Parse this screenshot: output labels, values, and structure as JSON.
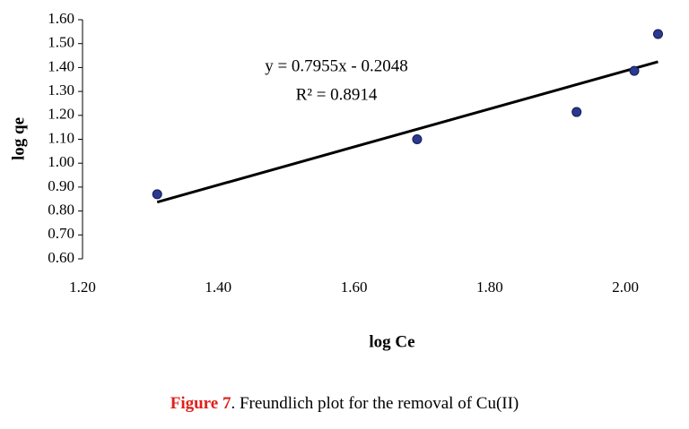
{
  "chart_data": {
    "type": "scatter",
    "x": [
      1.31,
      1.693,
      1.928,
      2.013,
      2.048
    ],
    "values": [
      0.87,
      1.1,
      1.214,
      1.386,
      1.54
    ],
    "color": "#2b3a8f",
    "xlim": [
      1.2,
      2.05
    ],
    "xticks": [
      {
        "value": 1.2,
        "label": "1.20"
      },
      {
        "value": 1.4,
        "label": "1.40"
      },
      {
        "value": 1.6,
        "label": "1.60"
      },
      {
        "value": 1.8,
        "label": "1.80"
      },
      {
        "value": 2.0,
        "label": "2.00"
      }
    ],
    "ylim": [
      0.6,
      1.6
    ],
    "yticks": [
      {
        "value": 0.6,
        "label": "0.60"
      },
      {
        "value": 0.7,
        "label": "0.70"
      },
      {
        "value": 0.8,
        "label": "0.80"
      },
      {
        "value": 0.9,
        "label": "0.90"
      },
      {
        "value": 1.0,
        "label": "1.00"
      },
      {
        "value": 1.1,
        "label": "1.10"
      },
      {
        "value": 1.2,
        "label": "1.20"
      },
      {
        "value": 1.3,
        "label": "1.30"
      },
      {
        "value": 1.4,
        "label": "1.40"
      },
      {
        "value": 1.5,
        "label": "1.50"
      },
      {
        "value": 1.6,
        "label": "1.60"
      }
    ],
    "x_label": "log Ce",
    "y_label": "log qe",
    "trendline": {
      "equation": "y = 0.7955x - 0.2048",
      "r2": "R² = 0.8914",
      "slope": 0.7955,
      "intercept": -0.2048,
      "color": "#000000"
    }
  },
  "caption": {
    "label": "Figure 7",
    "text": ". Freundlich plot for the removal of Cu(II)"
  }
}
